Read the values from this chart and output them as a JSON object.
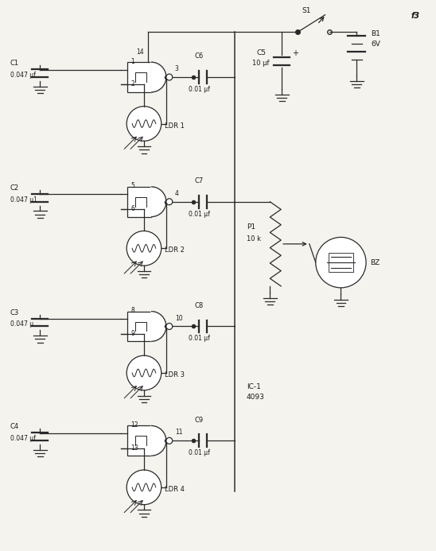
{
  "bg_color": "#f5f3ee",
  "line_color": "#2a2a2a",
  "text_color": "#1a1a1a",
  "figsize": [
    5.48,
    6.93
  ],
  "dpi": 100,
  "sections": [
    {
      "gy": 0.855,
      "pin_in1": 1,
      "pin_in2": 2,
      "pin_out": 3,
      "pin_vcc": 14,
      "ldr_label": "LDR 1",
      "cap_c": "C6",
      "cap_v": "0.01 μf",
      "cl": "C1",
      "cv": "0.047 μf"
    },
    {
      "gy": 0.635,
      "pin_in1": 5,
      "pin_in2": 6,
      "pin_out": 4,
      "pin_vcc": null,
      "ldr_label": "LDR 2",
      "cap_c": "C7",
      "cap_v": "0.01 μf",
      "cl": "C2",
      "cv": "0.047 μ1"
    },
    {
      "gy": 0.415,
      "pin_in1": 8,
      "pin_in2": 9,
      "pin_out": 10,
      "pin_vcc": null,
      "ldr_label": "LDR 3",
      "cap_c": "C8",
      "cap_v": "0.01 μf",
      "cl": "C3",
      "cv": "0.047 μ"
    },
    {
      "gy": 0.195,
      "pin_in1": 12,
      "pin_in2": 13,
      "pin_out": 11,
      "pin_vcc": null,
      "ldr_label": "LDR 4",
      "cap_c": "C9",
      "cap_v": "0.01 μf",
      "cl": "C4",
      "cv": "0.047 μf"
    }
  ]
}
